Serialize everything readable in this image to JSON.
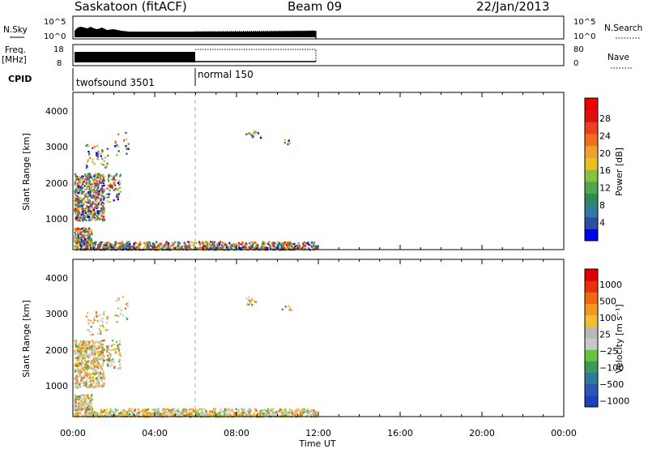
{
  "header": {
    "station": "Saskatoon (fitACF)",
    "beam": "Beam 09",
    "date": "22/Jan/2013"
  },
  "top_panels": {
    "nsky_label": "N.Sky",
    "nsky_ticks": [
      "10^5",
      "10^0"
    ],
    "nsearch_label": "N.Search",
    "nsearch_ticks": [
      "10^5",
      "10^0"
    ],
    "freq_label": "Freq.",
    "freq_unit": "[MHz]",
    "freq_ticks": [
      "18",
      "8"
    ],
    "nave_label": "Nave",
    "nave_ticks": [
      "80",
      "0"
    ],
    "cpid_label": "CPID",
    "cpid_segments": [
      "twofsound 3501",
      "normal 150"
    ]
  },
  "chart_data": [
    {
      "type": "heatmap",
      "name": "power",
      "ylabel": "Slant Range [km]",
      "ylim": [
        180,
        4500
      ],
      "yticks": [
        "4000",
        "3000",
        "2000",
        "1000"
      ],
      "xlabel": "Time UT",
      "xlim": [
        0,
        24
      ],
      "colorbar": {
        "label": "Power [dB]",
        "ticks": [
          "28",
          "24",
          "20",
          "16",
          "12",
          "8",
          "4"
        ],
        "colors": [
          "#0000ee",
          "#2b4fa3",
          "#2f7ba0",
          "#2e8b57",
          "#4ea64e",
          "#8dbf3f",
          "#e8c020",
          "#f0a030",
          "#ee7020",
          "#e84020",
          "#e01010",
          "#ee0000"
        ]
      }
    },
    {
      "type": "heatmap",
      "name": "velocity",
      "ylabel": "Slant Range [km]",
      "ylim": [
        180,
        4500
      ],
      "yticks": [
        "4000",
        "3000",
        "2000",
        "1000"
      ],
      "xlabel": "Time UT",
      "xlim": [
        0,
        24
      ],
      "colorbar": {
        "label": "Velocity [m s⁻¹]",
        "ticks": [
          "1000",
          "500",
          "100",
          "25",
          "−25",
          "−100",
          "−500",
          "−1000"
        ],
        "colors": [
          "#2040c0",
          "#2a58b0",
          "#2f7a96",
          "#3a9a5a",
          "#66c43a",
          "#c8c8c8",
          "#b8b8b8",
          "#f0c030",
          "#f09a20",
          "#ee6a10",
          "#e83010",
          "#e00000"
        ]
      }
    }
  ],
  "x_ticks": [
    "00:00",
    "04:00",
    "08:00",
    "12:00",
    "16:00",
    "20:00",
    "00:00"
  ],
  "x_axis_label": "Time UT"
}
